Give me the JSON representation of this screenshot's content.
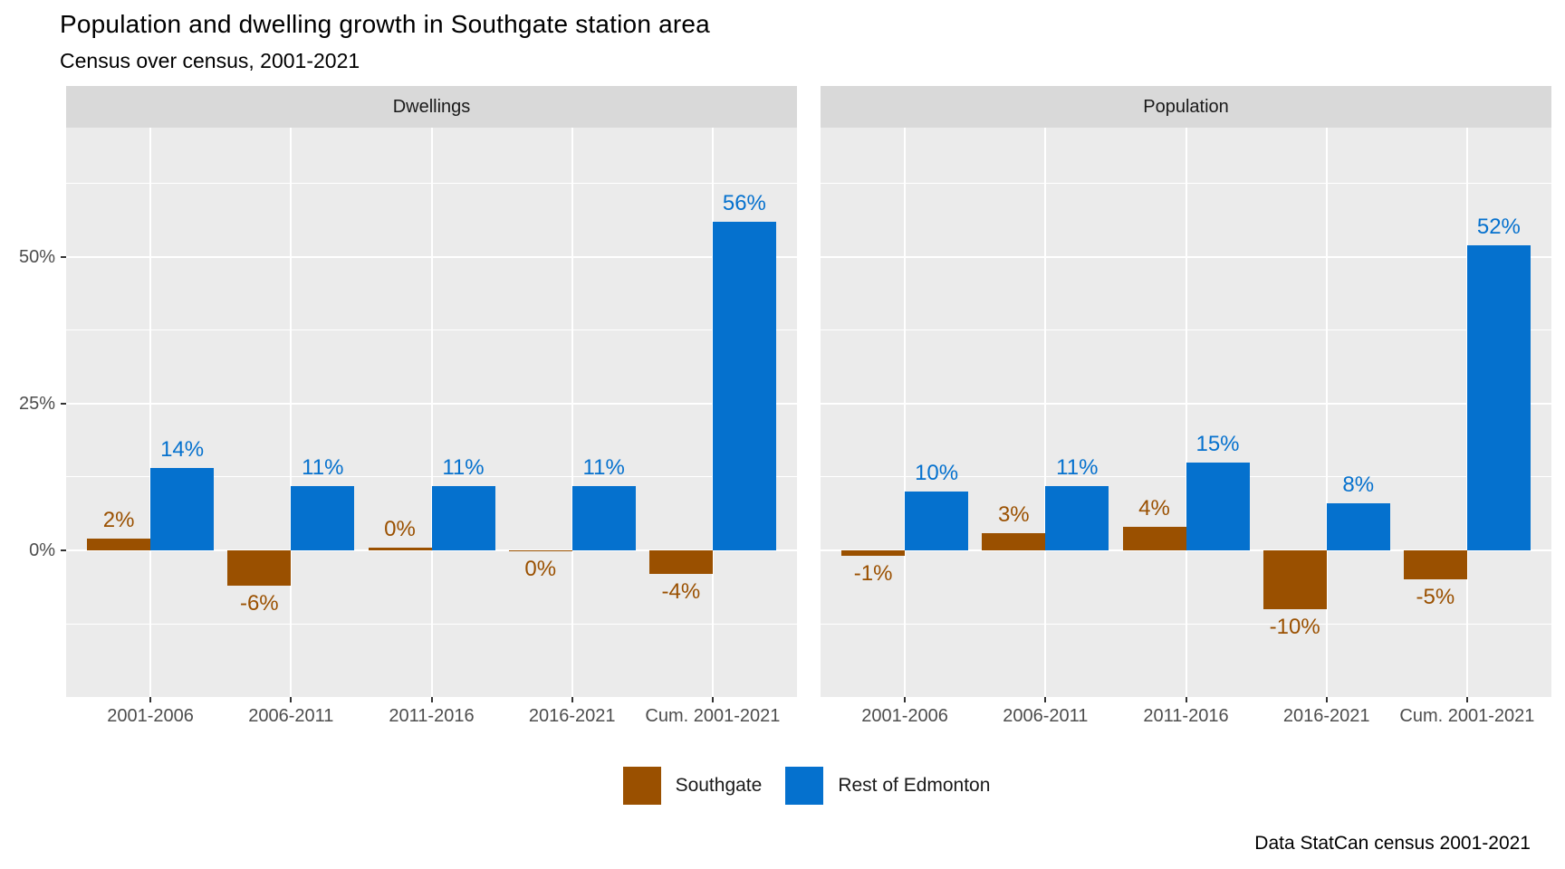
{
  "title": "Population and dwelling growth in Southgate station area",
  "subtitle": "Census over census, 2001-2021",
  "caption": "Data StatCan census 2001-2021",
  "chart_data": {
    "type": "bar",
    "layout": "two side-by-side facets, dodged grouped bars, legend bottom center, horizontal major gridlines at 0/25/50 with minor gridlines every 12.5",
    "categories": [
      "2001-2006",
      "2006-2011",
      "2011-2016",
      "2016-2021",
      "Cum. 2001-2021"
    ],
    "y_axis": {
      "tick_values": [
        0,
        25,
        50
      ],
      "tick_labels": [
        "0%",
        "25%",
        "50%"
      ],
      "minor_gridlines": [
        -12.5,
        12.5,
        37.5,
        62.5
      ],
      "ylim": [
        -25,
        72
      ]
    },
    "facets": [
      {
        "label": "Dwellings",
        "series": [
          {
            "name": "Southgate",
            "color": "#9A5000",
            "values": [
              2,
              -6,
              0.45,
              -0.2,
              -4
            ],
            "labels": [
              "2%",
              "-6%",
              "0%",
              "0%",
              "-4%"
            ]
          },
          {
            "name": "Rest of Edmonton",
            "color": "#0571CE",
            "values": [
              14,
              11,
              11,
              11,
              56
            ],
            "labels": [
              "14%",
              "11%",
              "11%",
              "11%",
              "56%"
            ]
          }
        ]
      },
      {
        "label": "Population",
        "series": [
          {
            "name": "Southgate",
            "color": "#9A5000",
            "values": [
              -1,
              3,
              4,
              -10,
              -5
            ],
            "labels": [
              "-1%",
              "3%",
              "4%",
              "-10%",
              "-5%"
            ]
          },
          {
            "name": "Rest of Edmonton",
            "color": "#0571CE",
            "values": [
              10,
              11,
              15,
              8,
              52
            ],
            "labels": [
              "10%",
              "11%",
              "15%",
              "8%",
              "52%"
            ]
          }
        ]
      }
    ],
    "legend": {
      "items": [
        {
          "label": "Southgate",
          "color": "#9A5000"
        },
        {
          "label": "Rest of Edmonton",
          "color": "#0571CE"
        }
      ]
    },
    "colors": {
      "panel_bg": "#EBEBEB",
      "strip_bg": "#D9D9D9",
      "gridline": "#FFFFFF",
      "axis_text": "#4D4D4D",
      "strip_text": "#1A1A1A",
      "tick": "#333333"
    }
  }
}
